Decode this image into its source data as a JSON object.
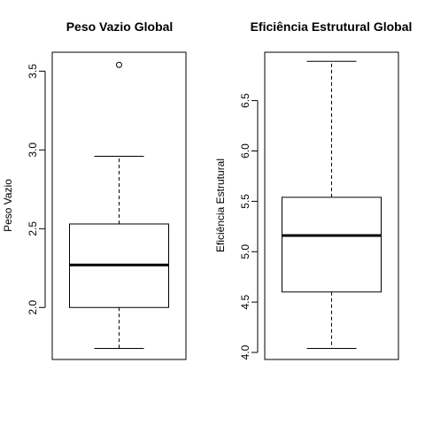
{
  "chart_data": [
    {
      "type": "boxplot",
      "title": "Peso Vazio Global",
      "ylabel": "Peso Vazio",
      "xlabel": "",
      "ylim": [
        1.67,
        3.62
      ],
      "yticks": [
        "2.0",
        "2.5",
        "3.0",
        "3.5"
      ],
      "box": {
        "min": 1.74,
        "q1": 2.0,
        "median": 2.27,
        "q3": 2.53,
        "max": 2.96
      },
      "outliers": [
        3.54
      ]
    },
    {
      "type": "boxplot",
      "title": "Eficiência Estrutural Global",
      "ylabel": "Eficiência Estrutural",
      "xlabel": "",
      "ylim": [
        3.93,
        6.98
      ],
      "yticks": [
        "4.0",
        "4.5",
        "5.0",
        "5.5",
        "6.0",
        "6.5"
      ],
      "box": {
        "min": 4.04,
        "q1": 4.6,
        "median": 5.16,
        "q3": 5.54,
        "max": 6.89
      },
      "outliers": []
    }
  ]
}
